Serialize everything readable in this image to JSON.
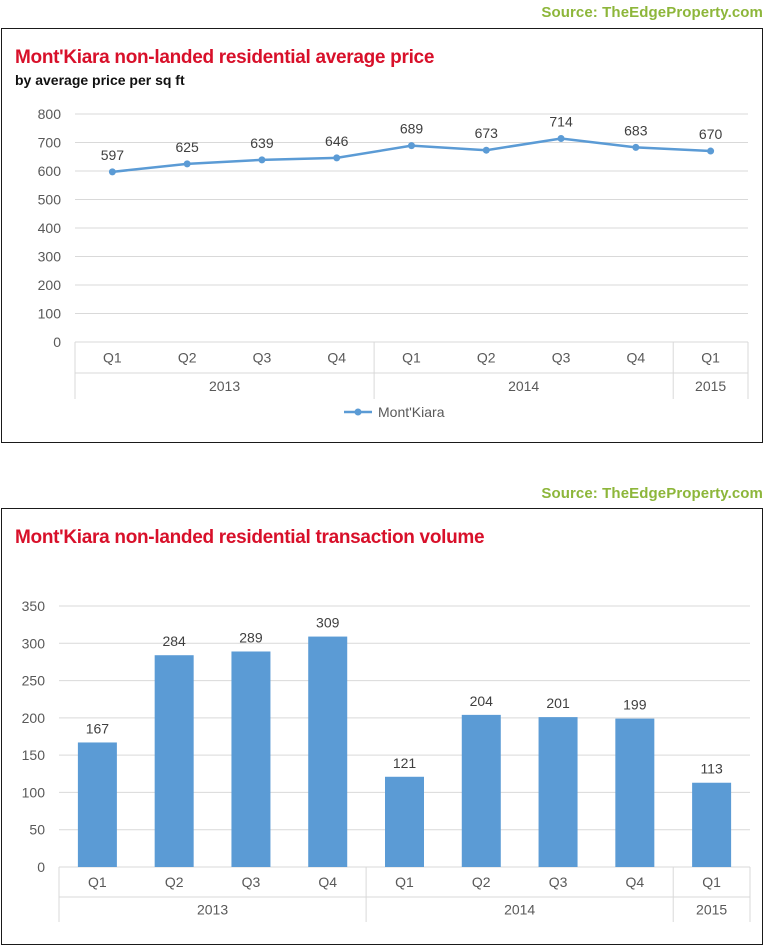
{
  "source1": "Source: TheEdgeProperty.com",
  "source2": "Source: TheEdgeProperty.com",
  "chart_data": [
    {
      "type": "line",
      "title": "Mont'Kiara non-landed residential average price",
      "subtitle": "by average price per sq ft",
      "categories": [
        "Q1",
        "Q2",
        "Q3",
        "Q4",
        "Q1",
        "Q2",
        "Q3",
        "Q4",
        "Q1"
      ],
      "groups": [
        {
          "label": "2013",
          "count": 4
        },
        {
          "label": "2014",
          "count": 4
        },
        {
          "label": "2015",
          "count": 1
        }
      ],
      "series": [
        {
          "name": "Mont'Kiara",
          "values": [
            597,
            625,
            639,
            646,
            689,
            673,
            714,
            683,
            670
          ],
          "color": "#5b9bd5"
        }
      ],
      "ylim": [
        0,
        800
      ],
      "yticks": [
        0,
        100,
        200,
        300,
        400,
        500,
        600,
        700,
        800
      ],
      "grid": true,
      "legend": "bottom"
    },
    {
      "type": "bar",
      "title": "Mont'Kiara non-landed residential transaction volume",
      "categories": [
        "Q1",
        "Q2",
        "Q3",
        "Q4",
        "Q1",
        "Q2",
        "Q3",
        "Q4",
        "Q1"
      ],
      "groups": [
        {
          "label": "2013",
          "count": 4
        },
        {
          "label": "2014",
          "count": 4
        },
        {
          "label": "2015",
          "count": 1
        }
      ],
      "values": [
        167,
        284,
        289,
        309,
        121,
        204,
        201,
        199,
        113
      ],
      "color": "#5b9bd5",
      "ylim": [
        0,
        350
      ],
      "yticks": [
        0,
        50,
        100,
        150,
        200,
        250,
        300,
        350
      ],
      "grid": true
    }
  ]
}
